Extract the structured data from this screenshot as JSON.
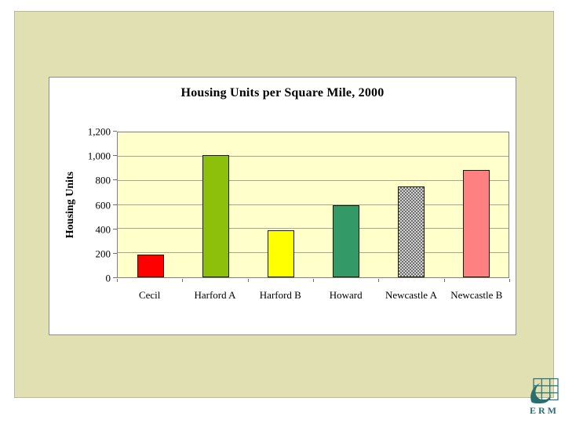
{
  "slide": {
    "background": "#FFFFFF",
    "panel_color": "#E0E0B2"
  },
  "chart_data": {
    "type": "bar",
    "title": "Housing Units per Square Mile, 2000",
    "ylabel": "Housing Units",
    "xlabel": "",
    "categories": [
      "Cecil",
      "Harford A",
      "Harford B",
      "Howard",
      "Newcastle A",
      "Newcastle B"
    ],
    "values": [
      185,
      1010,
      390,
      595,
      755,
      890
    ],
    "bar_colors": [
      "#FF0000",
      "#8CC00A",
      "#FFFF00",
      "#339966",
      "pattern:gray-checker",
      "#FF8080"
    ],
    "ylim": [
      0,
      1200
    ],
    "ytick_interval": 200,
    "ytick_labels": [
      "0",
      "200",
      "400",
      "600",
      "800",
      "1,000",
      "1,200"
    ],
    "grid": true,
    "legend_position": "none",
    "plot_background": "#FFFFCC"
  },
  "logo": {
    "text": "ERM",
    "color": "#2A6F6D"
  }
}
